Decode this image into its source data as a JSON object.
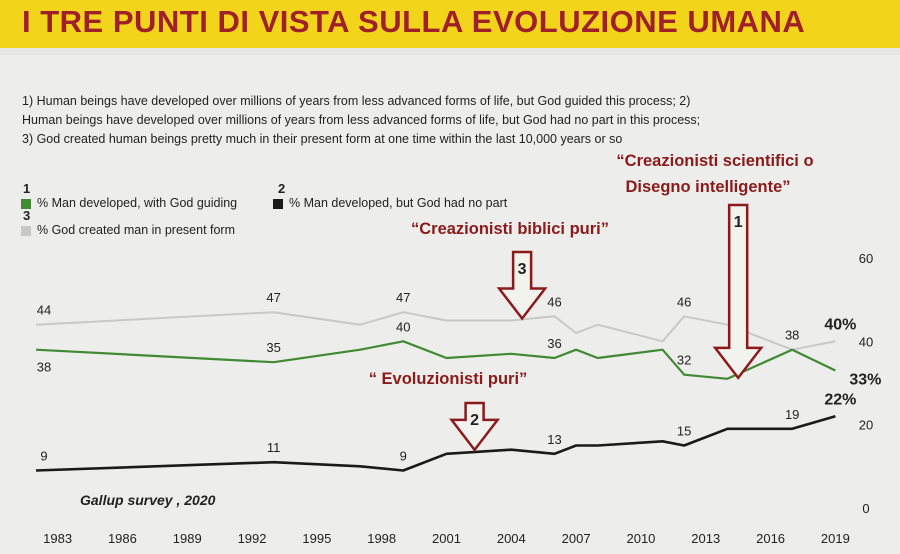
{
  "banner": {
    "title": "I TRE PUNTI DI VISTA SULLA EVOLUZIONE UMANA"
  },
  "description": "1) Human beings have developed over millions of years from less advanced forms of life, but God guided this process; 2) Human beings have developed over millions of years from less advanced forms of life, but God had no part in this process; 3) God created human beings pretty much in their present form at one time within the last 10,000 years or so",
  "legend": {
    "num1": "1",
    "item1": "% Man developed, with God guiding",
    "num2": "2",
    "item2": "% Man developed, but God had no part",
    "num3": "3",
    "item3": "% God created man in present form"
  },
  "source": "Gallup survey , 2020",
  "colors": {
    "banner": "#f2d51a",
    "title": "#a0202a",
    "green": "#3f8a33",
    "black": "#1a1a1a",
    "gray": "#c8c8c8",
    "arrow": "#8b1a1a"
  },
  "chart_data": {
    "type": "line",
    "title": "I TRE PUNTI DI VISTA SULLA EVOLUZIONE UMANA",
    "x_ticks": [
      "1983",
      "1986",
      "1989",
      "1992",
      "1995",
      "1998",
      "2001",
      "2004",
      "2007",
      "2010",
      "2013",
      "2016",
      "2019"
    ],
    "y_ticks": [
      "0",
      "20",
      "40",
      "60"
    ],
    "ylim": [
      0,
      60
    ],
    "xlim": [
      1982,
      2020
    ],
    "grid": false,
    "series": [
      {
        "name": "% God created man in present form",
        "color": "#c8c8c8",
        "x": [
          1982,
          1993,
          1997,
          1999,
          2001,
          2004,
          2006,
          2007,
          2008,
          2011,
          2012,
          2014,
          2017,
          2019
        ],
        "y": [
          44,
          47,
          44,
          47,
          45,
          45,
          46,
          42,
          44,
          40,
          46,
          44,
          38,
          40
        ],
        "labels": [
          {
            "x": 1982,
            "y": 44,
            "text": "44",
            "pos": "above"
          },
          {
            "x": 1993,
            "y": 47,
            "text": "47",
            "pos": "above"
          },
          {
            "x": 1999,
            "y": 47,
            "text": "47",
            "pos": "above"
          },
          {
            "x": 2006,
            "y": 46,
            "text": "46",
            "pos": "above"
          },
          {
            "x": 2012,
            "y": 46,
            "text": "46",
            "pos": "above"
          },
          {
            "x": 2019,
            "y": 40,
            "text": "40%",
            "pos": "above-big"
          }
        ]
      },
      {
        "name": "% Man developed, with God guiding",
        "color": "#3f8a33",
        "x": [
          1982,
          1993,
          1997,
          1999,
          2001,
          2004,
          2006,
          2007,
          2008,
          2011,
          2012,
          2014,
          2017,
          2019
        ],
        "y": [
          38,
          35,
          38,
          40,
          36,
          37,
          36,
          38,
          36,
          38,
          32,
          31,
          38,
          33
        ],
        "labels": [
          {
            "x": 1982,
            "y": 38,
            "text": "38",
            "pos": "below"
          },
          {
            "x": 1993,
            "y": 35,
            "text": "35",
            "pos": "above"
          },
          {
            "x": 1999,
            "y": 40,
            "text": "40",
            "pos": "above"
          },
          {
            "x": 2006,
            "y": 36,
            "text": "36",
            "pos": "above"
          },
          {
            "x": 2012,
            "y": 32,
            "text": "32",
            "pos": "above"
          },
          {
            "x": 2017,
            "y": 38,
            "text": "38",
            "pos": "above"
          },
          {
            "x": 2019,
            "y": 33,
            "text": "33%",
            "pos": "right-big"
          }
        ]
      },
      {
        "name": "% Man developed, but God had no part",
        "color": "#1a1a1a",
        "x": [
          1982,
          1993,
          1997,
          1999,
          2001,
          2004,
          2006,
          2007,
          2008,
          2011,
          2012,
          2014,
          2017,
          2019
        ],
        "y": [
          9,
          11,
          10,
          9,
          13,
          14,
          13,
          15,
          15,
          16,
          15,
          19,
          19,
          22
        ],
        "labels": [
          {
            "x": 1982,
            "y": 9,
            "text": "9",
            "pos": "above"
          },
          {
            "x": 1993,
            "y": 11,
            "text": "11",
            "pos": "above"
          },
          {
            "x": 1999,
            "y": 9,
            "text": "9",
            "pos": "above"
          },
          {
            "x": 2006,
            "y": 13,
            "text": "13",
            "pos": "above"
          },
          {
            "x": 2012,
            "y": 15,
            "text": "15",
            "pos": "above"
          },
          {
            "x": 2017,
            "y": 19,
            "text": "19",
            "pos": "above"
          },
          {
            "x": 2019,
            "y": 22,
            "text": "22%",
            "pos": "above-big"
          }
        ]
      }
    ],
    "annotations": [
      {
        "text": "“Creazionisti scientifici o",
        "line": 1,
        "arrow_label": "1",
        "arrow_x": 2014.5,
        "arrow_tip_y": 31
      },
      {
        "text": "Disegno intelligente”",
        "line": 2
      },
      {
        "text": "“Creazionisti biblici puri”",
        "arrow_label": "3",
        "arrow_x": 2004.5,
        "arrow_tip_y": 45
      },
      {
        "text": "“ Evoluzionisti puri”",
        "arrow_label": "2",
        "arrow_x": 2002.3,
        "arrow_tip_y": 13
      }
    ]
  }
}
